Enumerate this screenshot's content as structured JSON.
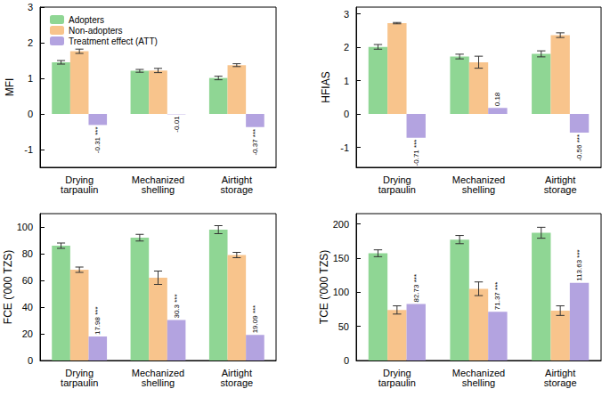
{
  "chart_data": [
    {
      "type": "bar",
      "ylabel": "MFI",
      "categories": [
        "Drying tarpaulin",
        "Mechanized shelling",
        "Airtight storage"
      ],
      "ylim": [
        -1.5,
        3
      ],
      "yticks": [
        -1,
        0,
        1,
        2,
        3
      ],
      "grid": false,
      "legend": "upper left",
      "series": [
        {
          "name": "Adopters",
          "color": "#8fd694",
          "values": [
            1.45,
            1.21,
            1.01
          ],
          "errors": [
            0.05,
            0.04,
            0.05
          ]
        },
        {
          "name": "Non-adopters",
          "color": "#f8c48c",
          "values": [
            1.76,
            1.22,
            1.37
          ],
          "errors": [
            0.06,
            0.06,
            0.04
          ]
        },
        {
          "name": "Treatment effect (ATT)",
          "color": "#b3a3e0",
          "values": [
            -0.31,
            -0.01,
            -0.37
          ],
          "data_labels": true,
          "value_labels": [
            "-0.31 ***",
            "-0.01",
            "-0.37 ***"
          ]
        }
      ]
    },
    {
      "type": "bar",
      "ylabel": "HFIAS",
      "categories": [
        "Drying tarpaulin",
        "Mechanized shelling",
        "Airtight storage"
      ],
      "ylim": [
        -1.6,
        3.2
      ],
      "yticks": [
        -1,
        0,
        1,
        2,
        3
      ],
      "grid": false,
      "series": [
        {
          "name": "Adopters",
          "color": "#8fd694",
          "values": [
            2.01,
            1.72,
            1.8
          ],
          "errors": [
            0.07,
            0.07,
            0.09
          ]
        },
        {
          "name": "Non-adopters",
          "color": "#f8c48c",
          "values": [
            2.72,
            1.55,
            2.36
          ],
          "errors": [
            0.02,
            0.18,
            0.07
          ]
        },
        {
          "name": "Treatment effect (ATT)",
          "color": "#b3a3e0",
          "values": [
            -0.71,
            0.18,
            -0.56
          ],
          "data_labels": true,
          "value_labels": [
            "-0.71 ***",
            "0.18",
            "-0.56 ***"
          ]
        }
      ]
    },
    {
      "type": "bar",
      "ylabel": "FCE ('000 TZS)",
      "categories": [
        "Drying tarpaulin",
        "Mechanized shelling",
        "Airtight storage"
      ],
      "ylim": [
        0,
        110
      ],
      "yticks": [
        0,
        20,
        40,
        60,
        80,
        100
      ],
      "grid": false,
      "series": [
        {
          "name": "Adopters",
          "color": "#8fd694",
          "values": [
            86,
            92,
            98
          ],
          "errors": [
            2,
            2.5,
            3
          ]
        },
        {
          "name": "Non-adopters",
          "color": "#f8c48c",
          "values": [
            68,
            62,
            79
          ],
          "errors": [
            2,
            5,
            2
          ]
        },
        {
          "name": "Treatment effect (ATT)",
          "color": "#b3a3e0",
          "values": [
            17.98,
            30.3,
            19.09
          ],
          "data_labels": true,
          "value_labels": [
            "17.98 ***",
            "30.3 ***",
            "19.09 ***"
          ]
        }
      ]
    },
    {
      "type": "bar",
      "ylabel": "TCE ('000 TZS)",
      "categories": [
        "Drying tarpaulin",
        "Mechanized shelling",
        "Airtight storage"
      ],
      "ylim": [
        0,
        215
      ],
      "yticks": [
        0,
        50,
        100,
        150,
        200
      ],
      "grid": false,
      "series": [
        {
          "name": "Adopters",
          "color": "#8fd694",
          "values": [
            157,
            177,
            187
          ],
          "errors": [
            5,
            6,
            8
          ]
        },
        {
          "name": "Non-adopters",
          "color": "#f8c48c",
          "values": [
            74,
            105,
            73
          ],
          "errors": [
            6,
            10,
            7
          ]
        },
        {
          "name": "Treatment effect (ATT)",
          "color": "#b3a3e0",
          "values": [
            82.73,
            71.37,
            113.63
          ],
          "data_labels": true,
          "value_labels": [
            "82.73 ***",
            "71.37 ***",
            "113.63 ***"
          ]
        }
      ]
    }
  ]
}
